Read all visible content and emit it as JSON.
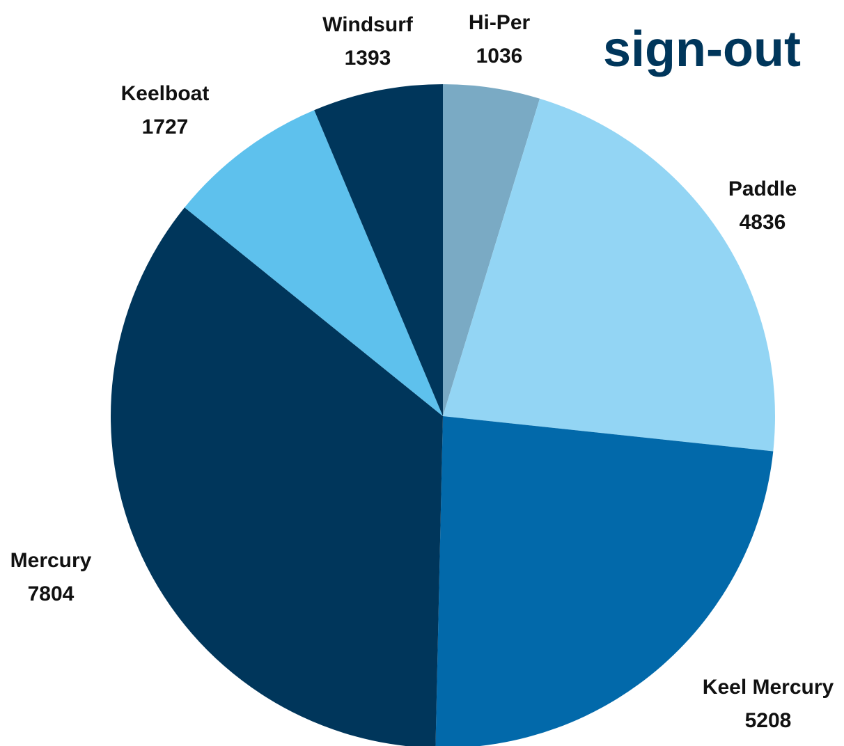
{
  "heading": "sign-out",
  "chart_data": {
    "type": "pie",
    "categories": [
      "Hi-Per",
      "Paddle",
      "Keel Mercury",
      "Mercury",
      "Keelboat",
      "Windsurf"
    ],
    "values": [
      1036,
      4836,
      5208,
      7804,
      1727,
      1393
    ],
    "colors": [
      "#7aaac4",
      "#93d5f4",
      "#0269aa",
      "#00365b",
      "#5ec1ed",
      "#00365b"
    ]
  }
}
